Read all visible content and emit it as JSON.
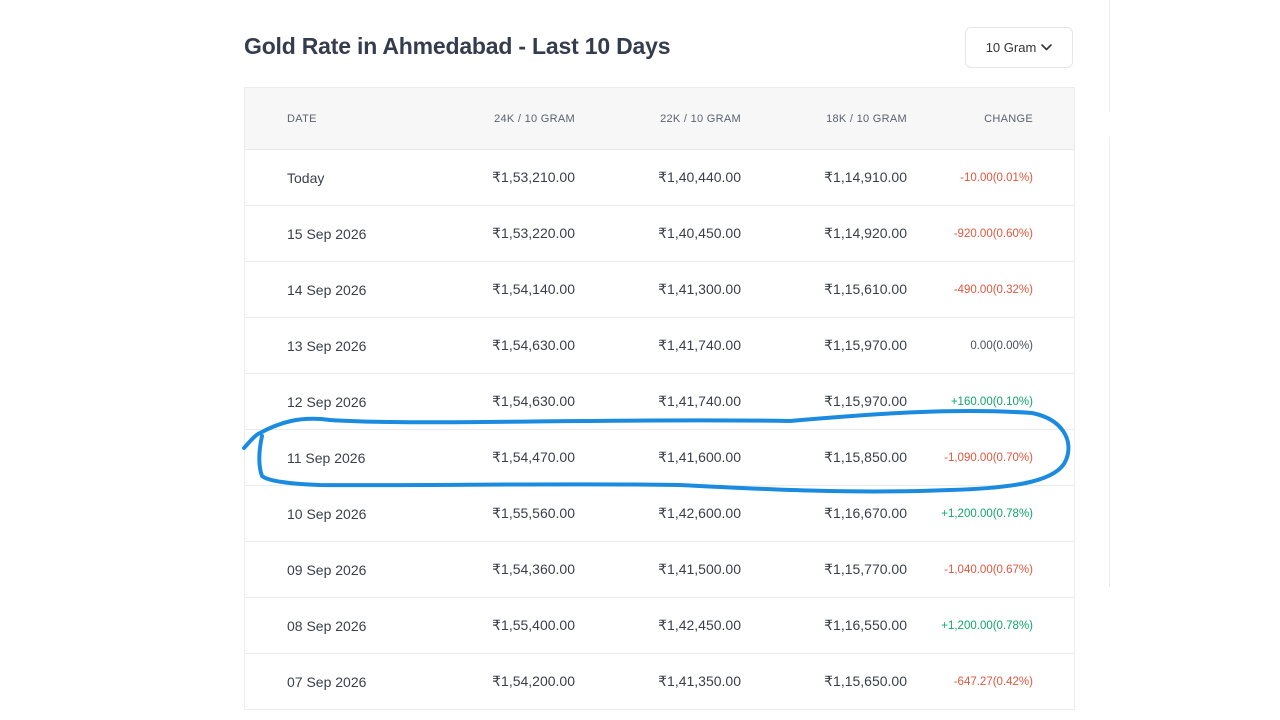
{
  "header": {
    "title": "Gold Rate in Ahmedabad - Last 10 Days",
    "unit_selector": {
      "selected": "10 Gram",
      "icon": "chevron-down-icon"
    }
  },
  "table": {
    "columns": [
      "DATE",
      "24K / 10 GRAM",
      "22K / 10 GRAM",
      "18K / 10 GRAM",
      "CHANGE"
    ],
    "rows": [
      {
        "date": "Today",
        "k24": "₹1,53,210.00",
        "k22": "₹1,40,440.00",
        "k18": "₹1,14,910.00",
        "change": "-10.00(0.01%)",
        "trend": "down"
      },
      {
        "date": "15 Sep 2026",
        "k24": "₹1,53,220.00",
        "k22": "₹1,40,450.00",
        "k18": "₹1,14,920.00",
        "change": "-920.00(0.60%)",
        "trend": "down"
      },
      {
        "date": "14 Sep 2026",
        "k24": "₹1,54,140.00",
        "k22": "₹1,41,300.00",
        "k18": "₹1,15,610.00",
        "change": "-490.00(0.32%)",
        "trend": "down"
      },
      {
        "date": "13 Sep 2026",
        "k24": "₹1,54,630.00",
        "k22": "₹1,41,740.00",
        "k18": "₹1,15,970.00",
        "change": "0.00(0.00%)",
        "trend": "flat"
      },
      {
        "date": "12 Sep 2026",
        "k24": "₹1,54,630.00",
        "k22": "₹1,41,740.00",
        "k18": "₹1,15,970.00",
        "change": "+160.00(0.10%)",
        "trend": "up"
      },
      {
        "date": "11 Sep 2026",
        "k24": "₹1,54,470.00",
        "k22": "₹1,41,600.00",
        "k18": "₹1,15,850.00",
        "change": "-1,090.00(0.70%)",
        "trend": "down"
      },
      {
        "date": "10 Sep 2026",
        "k24": "₹1,55,560.00",
        "k22": "₹1,42,600.00",
        "k18": "₹1,16,670.00",
        "change": "+1,200.00(0.78%)",
        "trend": "up"
      },
      {
        "date": "09 Sep 2026",
        "k24": "₹1,54,360.00",
        "k22": "₹1,41,500.00",
        "k18": "₹1,15,770.00",
        "change": "-1,040.00(0.67%)",
        "trend": "down"
      },
      {
        "date": "08 Sep 2026",
        "k24": "₹1,55,400.00",
        "k22": "₹1,42,450.00",
        "k18": "₹1,16,550.00",
        "change": "+1,200.00(0.78%)",
        "trend": "up"
      },
      {
        "date": "07 Sep 2026",
        "k24": "₹1,54,200.00",
        "k22": "₹1,41,350.00",
        "k18": "₹1,15,650.00",
        "change": "-647.27(0.42%)",
        "trend": "down"
      }
    ]
  },
  "annotation": {
    "highlighted_row": "11 Sep 2026",
    "color": "#1b8be0"
  },
  "colors": {
    "down": "#e0573e",
    "up": "#12a56a",
    "flat": "#4a4f5a",
    "title": "#353c4e"
  }
}
